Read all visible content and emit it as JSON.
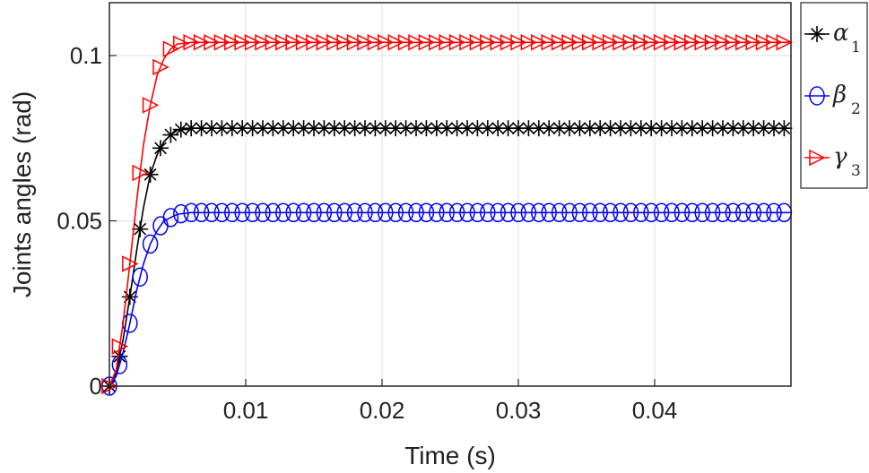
{
  "chart_data": {
    "type": "line",
    "xlabel": "Time (s)",
    "ylabel": "Joints angles (rad)",
    "xlim": [
      0,
      0.05
    ],
    "ylim": [
      0,
      0.116
    ],
    "xticks": [
      0.01,
      0.02,
      0.03,
      0.04
    ],
    "xtick_labels": [
      "0.01",
      "0.02",
      "0.03",
      "0.04"
    ],
    "yticks": [
      0,
      0.05,
      0.1
    ],
    "ytick_labels": [
      "0",
      "0.05",
      "0.1"
    ],
    "grid": true,
    "legend_position": "outside-right-top",
    "series": [
      {
        "name": "α",
        "subscript": "1",
        "color": "#000000",
        "marker": "asterisk",
        "x": [
          0,
          0.0005,
          0.001,
          0.0015,
          0.002,
          0.0025,
          0.003,
          0.0035,
          0.004,
          0.0045,
          0.005,
          0.006,
          0.008,
          0.01,
          0.02,
          0.03,
          0.04,
          0.05
        ],
        "y": [
          0,
          0.004,
          0.014,
          0.027,
          0.041,
          0.054,
          0.064,
          0.07,
          0.074,
          0.076,
          0.0775,
          0.078,
          0.078,
          0.078,
          0.078,
          0.078,
          0.078,
          0.078
        ]
      },
      {
        "name": "β",
        "subscript": "2",
        "color": "#0000ff",
        "marker": "circle",
        "x": [
          0,
          0.0005,
          0.001,
          0.0015,
          0.002,
          0.0025,
          0.003,
          0.0035,
          0.004,
          0.0045,
          0.005,
          0.006,
          0.008,
          0.01,
          0.02,
          0.03,
          0.04,
          0.05
        ],
        "y": [
          0,
          0.003,
          0.01,
          0.019,
          0.029,
          0.037,
          0.043,
          0.047,
          0.05,
          0.051,
          0.052,
          0.0525,
          0.0525,
          0.0525,
          0.0525,
          0.0525,
          0.0525,
          0.0525
        ]
      },
      {
        "name": "γ",
        "subscript": "3",
        "color": "#ff0000",
        "marker": "triangle-right",
        "x": [
          0,
          0.0005,
          0.001,
          0.0015,
          0.002,
          0.0025,
          0.003,
          0.0035,
          0.004,
          0.0045,
          0.005,
          0.006,
          0.008,
          0.01,
          0.02,
          0.03,
          0.04,
          0.05
        ],
        "y": [
          0,
          0.005,
          0.019,
          0.037,
          0.056,
          0.073,
          0.085,
          0.094,
          0.099,
          0.102,
          0.1035,
          0.104,
          0.104,
          0.104,
          0.104,
          0.104,
          0.104,
          0.104
        ]
      }
    ]
  }
}
